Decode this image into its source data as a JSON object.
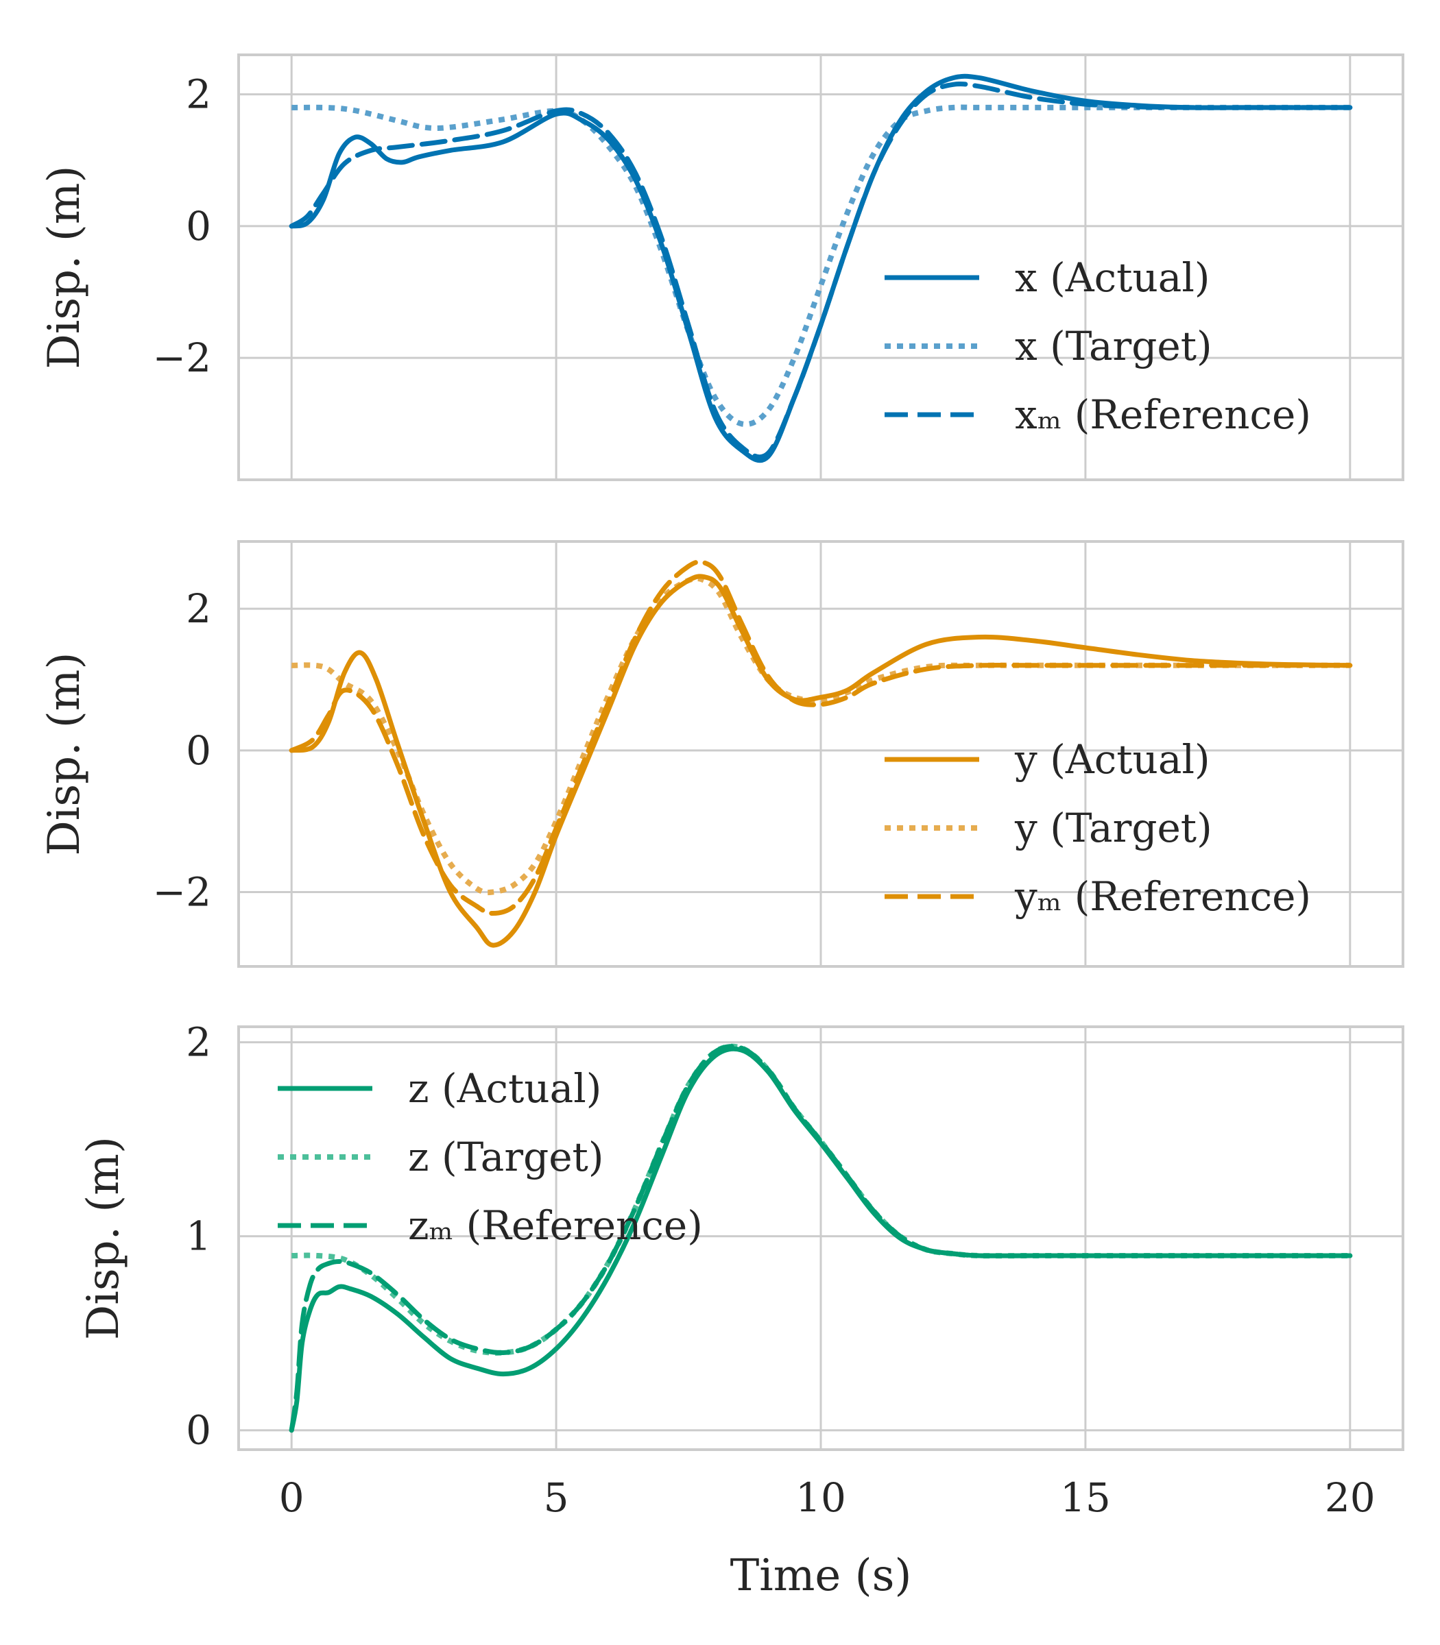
{
  "colors": {
    "x": "#0173b2",
    "y": "#de8f05",
    "z": "#029e73",
    "grid": "#cccccc",
    "text": "#262626"
  },
  "chart_data": [
    {
      "type": "line",
      "id": "x",
      "title": "",
      "xlabel": "",
      "ylabel": "Disp. (m)",
      "xlim": [
        -1,
        21
      ],
      "ylim": [
        -3.85,
        2.6
      ],
      "xticks": [
        0,
        5,
        10,
        15,
        20
      ],
      "yticks": [
        -2,
        0,
        2
      ],
      "ytick_labels": [
        "−2",
        "0",
        "2"
      ],
      "grid": true,
      "legend_position": "lower-right",
      "series": [
        {
          "name": "x (Actual)",
          "style": "solid",
          "color": "#0173b2",
          "x": [
            0,
            0.3,
            0.6,
            0.9,
            1.2,
            1.5,
            1.8,
            2.1,
            2.4,
            3,
            4,
            5,
            5.5,
            6,
            6.5,
            7,
            7.5,
            8,
            8.5,
            9,
            9.5,
            10,
            10.5,
            11,
            11.5,
            12,
            12.5,
            13,
            14,
            15,
            16,
            17,
            18,
            19,
            20
          ],
          "y": [
            0,
            0.05,
            0.4,
            1.1,
            1.35,
            1.25,
            1.02,
            0.97,
            1.05,
            1.15,
            1.28,
            1.7,
            1.6,
            1.3,
            0.7,
            -0.3,
            -1.6,
            -2.9,
            -3.4,
            -3.5,
            -2.6,
            -1.5,
            -0.3,
            0.8,
            1.6,
            2.05,
            2.25,
            2.25,
            2.05,
            1.9,
            1.83,
            1.8,
            1.8,
            1.8,
            1.8
          ]
        },
        {
          "name": "x (Target)",
          "style": "dotted",
          "color": "#5aa0cc",
          "x": [
            0,
            1,
            2,
            2.5,
            3,
            4,
            5,
            5.5,
            6,
            6.5,
            7,
            7.5,
            8,
            8.5,
            9,
            9.5,
            10,
            10.5,
            11,
            11.5,
            12,
            12.5,
            13,
            14,
            15,
            16,
            17,
            18,
            19,
            20
          ],
          "y": [
            1.8,
            1.78,
            1.6,
            1.5,
            1.5,
            1.62,
            1.75,
            1.6,
            1.2,
            0.6,
            -0.4,
            -1.6,
            -2.6,
            -3.0,
            -2.8,
            -2.0,
            -0.9,
            0.2,
            1.1,
            1.6,
            1.75,
            1.8,
            1.8,
            1.8,
            1.8,
            1.8,
            1.8,
            1.8,
            1.8,
            1.8
          ]
        },
        {
          "name": "xₘ (Reference)",
          "style": "dashed",
          "color": "#0173b2",
          "x": [
            0,
            0.3,
            0.6,
            1,
            1.5,
            2,
            3,
            4,
            5,
            5.5,
            6,
            6.5,
            7,
            7.5,
            8,
            8.5,
            9,
            9.5,
            10,
            10.5,
            11,
            11.5,
            12,
            12.5,
            13,
            14,
            15,
            16,
            17,
            18,
            19,
            20
          ],
          "y": [
            0,
            0.15,
            0.5,
            0.95,
            1.15,
            1.2,
            1.3,
            1.45,
            1.75,
            1.7,
            1.4,
            0.8,
            -0.2,
            -1.5,
            -2.8,
            -3.35,
            -3.45,
            -2.6,
            -1.5,
            -0.3,
            0.8,
            1.55,
            2.0,
            2.15,
            2.12,
            1.95,
            1.85,
            1.81,
            1.8,
            1.8,
            1.8,
            1.8
          ]
        }
      ]
    },
    {
      "type": "line",
      "id": "y",
      "title": "",
      "xlabel": "",
      "ylabel": "Disp. (m)",
      "xlim": [
        -1,
        21
      ],
      "ylim": [
        -3.05,
        2.95
      ],
      "xticks": [
        0,
        5,
        10,
        15,
        20
      ],
      "yticks": [
        -2,
        0,
        2
      ],
      "ytick_labels": [
        "−2",
        "0",
        "2"
      ],
      "grid": true,
      "legend_position": "lower-right",
      "series": [
        {
          "name": "y (Actual)",
          "style": "solid",
          "color": "#de8f05",
          "x": [
            0,
            0.4,
            0.7,
            1,
            1.3,
            1.6,
            2,
            2.5,
            3,
            3.5,
            3.8,
            4.2,
            4.6,
            5,
            5.5,
            6,
            6.5,
            7,
            7.5,
            7.8,
            8.1,
            8.5,
            9,
            9.5,
            10,
            10.5,
            11,
            12,
            13,
            14,
            15,
            16,
            17,
            18,
            19,
            20
          ],
          "y": [
            0,
            0.05,
            0.4,
            1.1,
            1.38,
            1.0,
            0.1,
            -1.0,
            -2.0,
            -2.5,
            -2.75,
            -2.55,
            -2.0,
            -1.2,
            -0.3,
            0.6,
            1.5,
            2.1,
            2.4,
            2.45,
            2.3,
            1.7,
            1.0,
            0.72,
            0.75,
            0.85,
            1.1,
            1.5,
            1.6,
            1.55,
            1.45,
            1.35,
            1.27,
            1.23,
            1.21,
            1.2
          ]
        },
        {
          "name": "y (Target)",
          "style": "dotted",
          "color": "#e6ac4f",
          "x": [
            0,
            0.6,
            1,
            1.5,
            2,
            2.5,
            3,
            3.5,
            3.8,
            4.2,
            4.6,
            5,
            5.5,
            6,
            6.5,
            7,
            7.5,
            7.8,
            8.1,
            8.5,
            9,
            9.5,
            10,
            10.5,
            11,
            12,
            13,
            14,
            15,
            16,
            17,
            18,
            19,
            20
          ],
          "y": [
            1.2,
            1.18,
            0.95,
            0.7,
            0.0,
            -0.9,
            -1.6,
            -1.95,
            -2.0,
            -1.9,
            -1.6,
            -1.0,
            -0.1,
            0.8,
            1.6,
            2.15,
            2.4,
            2.4,
            2.2,
            1.6,
            1.0,
            0.75,
            0.72,
            0.82,
            1.0,
            1.18,
            1.2,
            1.2,
            1.2,
            1.2,
            1.2,
            1.2,
            1.2,
            1.2
          ]
        },
        {
          "name": "yₘ (Reference)",
          "style": "dashed",
          "color": "#de8f05",
          "x": [
            0,
            0.4,
            0.7,
            1,
            1.5,
            2,
            2.5,
            3,
            3.5,
            3.8,
            4.2,
            4.6,
            5,
            5.5,
            6,
            6.5,
            7,
            7.5,
            7.8,
            8.1,
            8.5,
            9,
            9.5,
            10,
            10.5,
            11,
            12,
            13,
            14,
            15,
            16,
            17,
            18,
            19,
            20
          ],
          "y": [
            0,
            0.15,
            0.5,
            0.85,
            0.6,
            -0.2,
            -1.2,
            -1.9,
            -2.2,
            -2.3,
            -2.2,
            -1.8,
            -1.1,
            -0.2,
            0.7,
            1.6,
            2.25,
            2.6,
            2.65,
            2.45,
            1.8,
            1.05,
            0.7,
            0.65,
            0.75,
            0.95,
            1.15,
            1.2,
            1.2,
            1.2,
            1.2,
            1.2,
            1.2,
            1.2,
            1.2
          ]
        }
      ]
    },
    {
      "type": "line",
      "id": "z",
      "title": "",
      "xlabel": "Time (s)",
      "ylabel": "Disp. (m)",
      "xlim": [
        -1,
        21
      ],
      "ylim": [
        -0.1,
        2.08
      ],
      "xticks": [
        0,
        5,
        10,
        15,
        20
      ],
      "xtick_labels": [
        "0",
        "5",
        "10",
        "15",
        "20"
      ],
      "yticks": [
        0,
        1,
        2
      ],
      "ytick_labels": [
        "0",
        "1",
        "2"
      ],
      "grid": true,
      "legend_position": "upper-left",
      "series": [
        {
          "name": "z (Actual)",
          "style": "solid",
          "color": "#029e73",
          "x": [
            0,
            0.1,
            0.2,
            0.35,
            0.5,
            0.7,
            0.9,
            1.1,
            1.5,
            2,
            2.5,
            3,
            3.5,
            4,
            4.5,
            5,
            5.5,
            6,
            6.5,
            7,
            7.5,
            8,
            8.5,
            9,
            9.5,
            10,
            10.5,
            11,
            11.5,
            12,
            12.5,
            13,
            14,
            15,
            16,
            17,
            18,
            19,
            20
          ],
          "y": [
            0,
            0.15,
            0.45,
            0.62,
            0.7,
            0.71,
            0.74,
            0.73,
            0.69,
            0.6,
            0.48,
            0.37,
            0.32,
            0.29,
            0.32,
            0.42,
            0.58,
            0.8,
            1.08,
            1.42,
            1.75,
            1.93,
            1.96,
            1.85,
            1.65,
            1.48,
            1.3,
            1.12,
            0.99,
            0.93,
            0.91,
            0.9,
            0.9,
            0.9,
            0.9,
            0.9,
            0.9,
            0.9,
            0.9
          ]
        },
        {
          "name": "z (Target)",
          "style": "dotted",
          "color": "#4cbf9a",
          "x": [
            0,
            0.5,
            1,
            1.5,
            2,
            2.5,
            3,
            3.5,
            4,
            4.5,
            5,
            5.5,
            6,
            6.5,
            7,
            7.5,
            8,
            8.5,
            9,
            9.5,
            10,
            10.5,
            11,
            11.5,
            12,
            12.5,
            13,
            14,
            15,
            16,
            17,
            18,
            19,
            20
          ],
          "y": [
            0.9,
            0.9,
            0.88,
            0.8,
            0.68,
            0.55,
            0.46,
            0.41,
            0.4,
            0.43,
            0.52,
            0.66,
            0.87,
            1.15,
            1.48,
            1.78,
            1.95,
            1.97,
            1.86,
            1.66,
            1.49,
            1.31,
            1.13,
            1.0,
            0.93,
            0.91,
            0.9,
            0.9,
            0.9,
            0.9,
            0.9,
            0.9,
            0.9,
            0.9
          ]
        },
        {
          "name": "zₘ (Reference)",
          "style": "dashed",
          "color": "#029e73",
          "x": [
            0,
            0.1,
            0.2,
            0.35,
            0.5,
            0.7,
            0.9,
            1.1,
            1.5,
            2,
            2.5,
            3,
            3.5,
            4,
            4.5,
            5,
            5.5,
            6,
            6.5,
            7,
            7.5,
            8,
            8.5,
            9,
            9.5,
            10,
            10.5,
            11,
            11.5,
            12,
            12.5,
            13,
            14,
            15,
            16,
            17,
            18,
            19,
            20
          ],
          "y": [
            0,
            0.2,
            0.55,
            0.75,
            0.83,
            0.86,
            0.87,
            0.86,
            0.81,
            0.7,
            0.57,
            0.47,
            0.42,
            0.4,
            0.43,
            0.52,
            0.66,
            0.87,
            1.15,
            1.48,
            1.78,
            1.95,
            1.97,
            1.86,
            1.66,
            1.49,
            1.31,
            1.13,
            1.0,
            0.93,
            0.91,
            0.9,
            0.9,
            0.9,
            0.9,
            0.9,
            0.9,
            0.9,
            0.9
          ]
        }
      ]
    }
  ]
}
